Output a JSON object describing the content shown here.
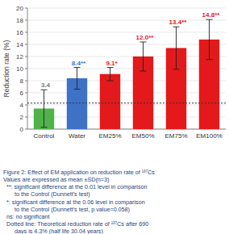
{
  "chart_data": {
    "type": "bar",
    "y_label": "Reduction rate (%)",
    "categories": [
      "Control",
      "Water",
      "EM25%",
      "EM50%",
      "EM75%",
      "EM100%"
    ],
    "values": [
      3.4,
      8.4,
      9.1,
      12.0,
      13.4,
      14.8
    ],
    "value_labels": [
      "3.4",
      "8.4**",
      "9.1*",
      "12.0**",
      "13.4**",
      "14.8**"
    ],
    "errors": [
      3.1,
      1.8,
      1.1,
      2.4,
      3.5,
      3.3
    ],
    "colors": [
      "#4fb24a",
      "#3f72c6",
      "#e3191b",
      "#e3191b",
      "#e3191b",
      "#e3191b"
    ],
    "data_labels": true,
    "theoretical_line": 4.3,
    "ylim": [
      0,
      20
    ],
    "yticks": [
      0,
      2,
      4,
      6,
      8,
      10,
      12,
      14,
      16,
      18,
      20
    ],
    "grid": true,
    "notes": [
      [
        "Figure 2: Effect of EM application on reduction rate of ¹³⁷Cs"
      ],
      [
        "Values are expressed as mean ±SD(n=3)"
      ],
      [
        "**: significant difference at the 0.01 level in comparison",
        "to the Control (Dunnett's test)"
      ],
      [
        "*: significant difference at the 0.06 level in comparison",
        "to the Control (Dunnett's test, p value=0.058)"
      ],
      [
        "ns: no significant"
      ],
      [
        "Dotted line: Theoretical reduction rate of ¹³⁷Cs after 690",
        "days is 4.3% (half life 30.04 years)"
      ]
    ]
  }
}
